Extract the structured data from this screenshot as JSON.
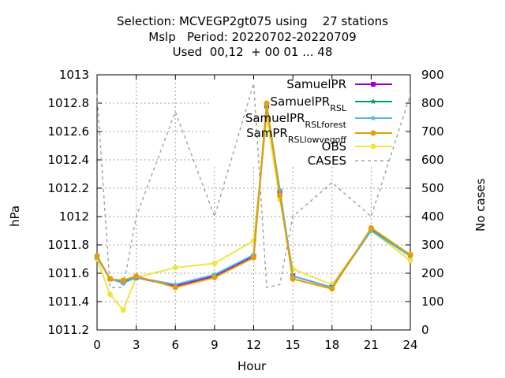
{
  "title_lines": [
    "Selection: MCVEGP2gt075 using    27 stations",
    "Mslp   Period: 20220702-20220709",
    "Used  00,12  + 00 01 ... 48"
  ],
  "colors": {
    "SamuelPR": "#9400d3",
    "SamuelPR_R_SL": "#009e73",
    "SamuelPR_R_SL_forest": "#56b4e9",
    "SamPR_R_SL_lowvegoff": "#e69f00",
    "OBS": "#f0e442",
    "CASES": "#a0a0a0",
    "grid": "#a0a0a0"
  },
  "chart_data": {
    "type": "line",
    "xlabel": "Hour",
    "ylabel": "hPa",
    "y2label": "No cases",
    "xlim": [
      0,
      24
    ],
    "ylim": [
      1011.2,
      1013
    ],
    "y2lim": [
      0,
      900
    ],
    "x_ticks": [
      0,
      3,
      6,
      9,
      12,
      15,
      18,
      21,
      24
    ],
    "y_ticks": [
      "1011.2",
      "1011.4",
      "1011.6",
      "1011.8",
      "1012",
      "1012.2",
      "1012.4",
      "1012.6",
      "1012.8",
      "1013"
    ],
    "y2_ticks": [
      "0",
      "100",
      "200",
      "300",
      "400",
      "500",
      "600",
      "700",
      "800",
      "900"
    ],
    "grid": true,
    "legend_position": "top-right",
    "x": [
      0,
      1,
      2,
      3,
      6,
      9,
      12,
      13,
      14,
      15,
      18,
      21,
      24
    ],
    "series": [
      {
        "name": "SamuelPR",
        "legend_main": "SamuelPR",
        "legend_sub": [],
        "color_key": "SamuelPR",
        "marker": "square",
        "values": [
          1011.72,
          1011.56,
          1011.54,
          1011.57,
          1011.51,
          1011.58,
          1011.72,
          1012.78,
          1012.17,
          1011.58,
          1011.5,
          1011.91,
          1011.73
        ]
      },
      {
        "name": "SamuelPR_R SL",
        "legend_main": "SamuelPR",
        "legend_sub": [
          "R",
          "SL"
        ],
        "color_key": "SamuelPR_R_SL",
        "marker": "star",
        "values": [
          1011.72,
          1011.56,
          1011.54,
          1011.57,
          1011.52,
          1011.59,
          1011.73,
          1012.79,
          1012.18,
          1011.58,
          1011.5,
          1011.91,
          1011.73
        ]
      },
      {
        "name": "SamuelPR_R SL_forest",
        "legend_main": "SamuelPR",
        "legend_sub": [
          "R",
          "SL",
          "forest"
        ],
        "color_key": "SamuelPR_R_SL_forest",
        "marker": "star",
        "values": [
          1011.71,
          1011.56,
          1011.53,
          1011.57,
          1011.52,
          1011.59,
          1011.73,
          1012.78,
          1012.19,
          1011.58,
          1011.5,
          1011.9,
          1011.72
        ]
      },
      {
        "name": "SamPR_R SL_lowvegoff",
        "legend_main": "SamPR",
        "legend_sub": [
          "R",
          "SL",
          "lowvegoff"
        ],
        "color_key": "SamPR_R_SL_lowvegoff",
        "marker": "circle",
        "values": [
          1011.72,
          1011.56,
          1011.55,
          1011.58,
          1011.5,
          1011.57,
          1011.71,
          1012.8,
          1012.15,
          1011.56,
          1011.49,
          1011.92,
          1011.73
        ]
      },
      {
        "name": "OBS",
        "legend_main": "OBS",
        "legend_sub": [],
        "color_key": "OBS",
        "marker": "circle",
        "values": [
          1011.7,
          1011.45,
          1011.34,
          1011.57,
          1011.64,
          1011.67,
          1011.83,
          1012.7,
          1012.12,
          1011.63,
          1011.52,
          1011.9,
          1011.69
        ]
      },
      {
        "name": "CASES",
        "legend_main": "CASES",
        "legend_sub": [],
        "color_key": "CASES",
        "marker": "none",
        "dashed": true,
        "axis": "y2",
        "values": [
          830,
          150,
          150,
          400,
          770,
          400,
          870,
          150,
          160,
          400,
          520,
          400,
          830
        ]
      }
    ]
  }
}
